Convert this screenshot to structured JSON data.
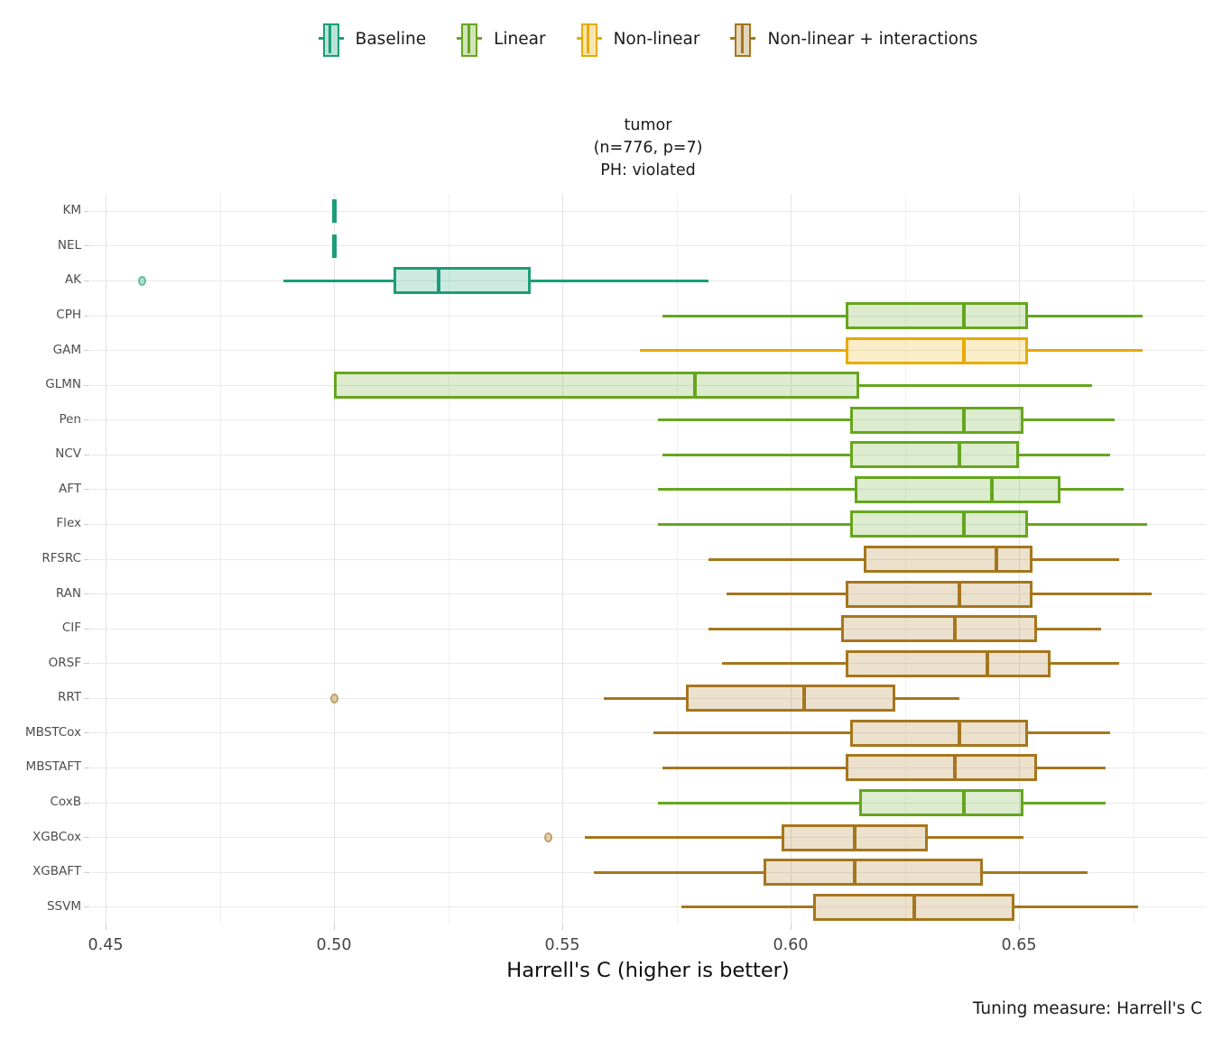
{
  "legend": {
    "items": [
      {
        "label": "Baseline",
        "color": "#1B9E77"
      },
      {
        "label": "Linear",
        "color": "#66A61E"
      },
      {
        "label": "Non-linear",
        "color": "#E6AB02"
      },
      {
        "label": "Non-linear + interactions",
        "color": "#A6761D"
      }
    ]
  },
  "title": {
    "line1": "tumor",
    "line2": "(n=776, p=7)",
    "line3": "PH: violated"
  },
  "caption": "Tuning measure: Harrell's C",
  "chart_data": {
    "type": "boxplot-horizontal",
    "title": "tumor (n=776, p=7) PH: violated",
    "xlabel": "Harrell's C (higher is better)",
    "ylabel": "",
    "x_ticks": [
      0.45,
      0.5,
      0.55,
      0.6,
      0.65
    ],
    "x_minor_ticks": [
      0.475,
      0.525,
      0.575,
      0.625,
      0.675
    ],
    "xlim": [
      0.4466,
      0.6909
    ],
    "grid": true,
    "legend_position": "top",
    "groups": {
      "Baseline": "#1B9E77",
      "Linear": "#66A61E",
      "Non-linear": "#E6AB02",
      "Non-linear + interactions": "#A6761D"
    },
    "models": [
      {
        "name": "KM",
        "group": "Baseline",
        "type": "tick",
        "value": 0.5
      },
      {
        "name": "NEL",
        "group": "Baseline",
        "type": "tick",
        "value": 0.5
      },
      {
        "name": "AK",
        "group": "Baseline",
        "type": "box",
        "lo": 0.489,
        "q1": 0.513,
        "med": 0.523,
        "q3": 0.543,
        "hi": 0.582,
        "outliers": [
          0.458
        ]
      },
      {
        "name": "CPH",
        "group": "Linear",
        "type": "box",
        "lo": 0.572,
        "q1": 0.612,
        "med": 0.638,
        "q3": 0.652,
        "hi": 0.677,
        "outliers": []
      },
      {
        "name": "GAM",
        "group": "Non-linear",
        "type": "box",
        "lo": 0.567,
        "q1": 0.612,
        "med": 0.638,
        "q3": 0.652,
        "hi": 0.677,
        "outliers": []
      },
      {
        "name": "GLMN",
        "group": "Linear",
        "type": "box",
        "lo": 0.5,
        "q1": 0.5,
        "med": 0.579,
        "q3": 0.615,
        "hi": 0.666,
        "outliers": []
      },
      {
        "name": "Pen",
        "group": "Linear",
        "type": "box",
        "lo": 0.571,
        "q1": 0.613,
        "med": 0.638,
        "q3": 0.651,
        "hi": 0.671,
        "outliers": []
      },
      {
        "name": "NCV",
        "group": "Linear",
        "type": "box",
        "lo": 0.572,
        "q1": 0.613,
        "med": 0.637,
        "q3": 0.65,
        "hi": 0.67,
        "outliers": []
      },
      {
        "name": "AFT",
        "group": "Linear",
        "type": "box",
        "lo": 0.571,
        "q1": 0.614,
        "med": 0.644,
        "q3": 0.659,
        "hi": 0.673,
        "outliers": []
      },
      {
        "name": "Flex",
        "group": "Linear",
        "type": "box",
        "lo": 0.571,
        "q1": 0.613,
        "med": 0.638,
        "q3": 0.652,
        "hi": 0.678,
        "outliers": []
      },
      {
        "name": "RFSRC",
        "group": "Non-linear + interactions",
        "type": "box",
        "lo": 0.582,
        "q1": 0.616,
        "med": 0.645,
        "q3": 0.653,
        "hi": 0.672,
        "outliers": []
      },
      {
        "name": "RAN",
        "group": "Non-linear + interactions",
        "type": "box",
        "lo": 0.586,
        "q1": 0.612,
        "med": 0.637,
        "q3": 0.653,
        "hi": 0.679,
        "outliers": []
      },
      {
        "name": "CIF",
        "group": "Non-linear + interactions",
        "type": "box",
        "lo": 0.582,
        "q1": 0.611,
        "med": 0.636,
        "q3": 0.654,
        "hi": 0.668,
        "outliers": []
      },
      {
        "name": "ORSF",
        "group": "Non-linear + interactions",
        "type": "box",
        "lo": 0.585,
        "q1": 0.612,
        "med": 0.643,
        "q3": 0.657,
        "hi": 0.672,
        "outliers": []
      },
      {
        "name": "RRT",
        "group": "Non-linear + interactions",
        "type": "box",
        "lo": 0.559,
        "q1": 0.577,
        "med": 0.603,
        "q3": 0.623,
        "hi": 0.637,
        "outliers": [
          0.5
        ]
      },
      {
        "name": "MBSTCox",
        "group": "Non-linear + interactions",
        "type": "box",
        "lo": 0.57,
        "q1": 0.613,
        "med": 0.637,
        "q3": 0.652,
        "hi": 0.67,
        "outliers": []
      },
      {
        "name": "MBSTAFT",
        "group": "Non-linear + interactions",
        "type": "box",
        "lo": 0.572,
        "q1": 0.612,
        "med": 0.636,
        "q3": 0.654,
        "hi": 0.669,
        "outliers": []
      },
      {
        "name": "CoxB",
        "group": "Linear",
        "type": "box",
        "lo": 0.571,
        "q1": 0.615,
        "med": 0.638,
        "q3": 0.651,
        "hi": 0.669,
        "outliers": []
      },
      {
        "name": "XGBCox",
        "group": "Non-linear + interactions",
        "type": "box",
        "lo": 0.555,
        "q1": 0.598,
        "med": 0.614,
        "q3": 0.63,
        "hi": 0.651,
        "outliers": [
          0.547
        ]
      },
      {
        "name": "XGBAFT",
        "group": "Non-linear + interactions",
        "type": "box",
        "lo": 0.557,
        "q1": 0.594,
        "med": 0.614,
        "q3": 0.642,
        "hi": 0.665,
        "outliers": []
      },
      {
        "name": "SSVM",
        "group": "Non-linear + interactions",
        "type": "box",
        "lo": 0.576,
        "q1": 0.605,
        "med": 0.627,
        "q3": 0.649,
        "hi": 0.676,
        "outliers": []
      }
    ]
  }
}
